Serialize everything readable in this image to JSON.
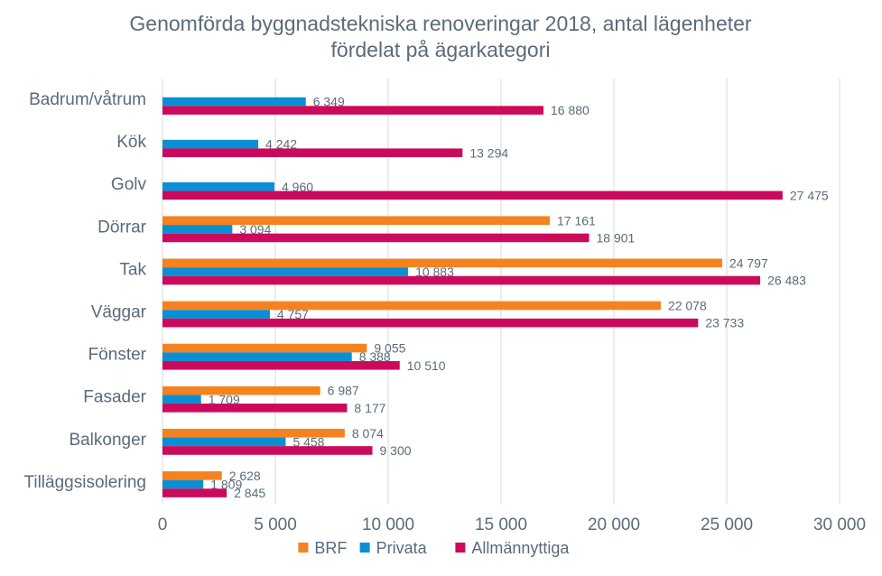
{
  "chart_data": {
    "type": "bar",
    "orientation": "horizontal",
    "title_lines": [
      "Genomförda byggnadstekniska renoveringar 2018, antal lägenheter",
      "fördelat på ägarkategori"
    ],
    "categories": [
      "Badrum/våtrum",
      "Kök",
      "Golv",
      "Dörrar",
      "Tak",
      "Väggar",
      "Fönster",
      "Fasader",
      "Balkonger",
      "Tilläggsisolering"
    ],
    "series": [
      {
        "name": "BRF",
        "color": "#f5821f",
        "values": [
          null,
          null,
          null,
          17161,
          24797,
          22078,
          9055,
          6987,
          8074,
          2628
        ],
        "labels": [
          null,
          null,
          null,
          "17 161",
          "24 797",
          "22 078",
          "9 055",
          "6 987",
          "8 074",
          "2 628"
        ]
      },
      {
        "name": "Privata",
        "color": "#0b8fd4",
        "values": [
          6349,
          4242,
          4960,
          3094,
          10883,
          4757,
          8388,
          1709,
          5458,
          1809
        ],
        "labels": [
          "6 349",
          "4 242",
          "4 960",
          "3 094",
          "10 883",
          "4 757",
          "8 388",
          "1 709",
          "5 458",
          "1 809"
        ]
      },
      {
        "name": "Allmännyttiga",
        "color": "#cc0a5b",
        "values": [
          16880,
          13294,
          27475,
          18901,
          26483,
          23733,
          10510,
          8177,
          9300,
          2845
        ],
        "labels": [
          "16 880",
          "13 294",
          "27 475",
          "18 901",
          "26 483",
          "23 733",
          "10 510",
          "8 177",
          "9 300",
          "2 845"
        ]
      }
    ],
    "xlim": [
      0,
      30000
    ],
    "xticks": [
      0,
      5000,
      10000,
      15000,
      20000,
      25000,
      30000
    ],
    "xtick_labels": [
      "0",
      "5 000",
      "10 000",
      "15 000",
      "20 000",
      "25 000",
      "30 000"
    ],
    "grid": true,
    "legend_position": "bottom"
  }
}
